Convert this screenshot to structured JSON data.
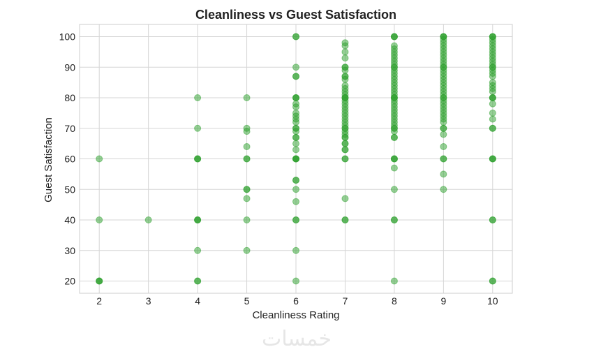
{
  "chart_data": {
    "type": "scatter",
    "title": "Cleanliness vs Guest Satisfaction",
    "xlabel": "Cleanliness Rating",
    "ylabel": "Guest Satisfaction",
    "xlim": [
      1.6,
      10.4
    ],
    "ylim": [
      16,
      104
    ],
    "xticks": [
      2,
      3,
      4,
      5,
      6,
      7,
      8,
      9,
      10
    ],
    "yticks": [
      20,
      30,
      40,
      50,
      60,
      70,
      80,
      90,
      100
    ],
    "grid": true,
    "marker_color": "#2ca02c",
    "marker_alpha": 0.5,
    "points": [
      {
        "x": 2,
        "y": 60
      },
      {
        "x": 2,
        "y": 40
      },
      {
        "x": 2,
        "y": 20
      },
      {
        "x": 2,
        "y": 20
      },
      {
        "x": 2,
        "y": 20
      },
      {
        "x": 3,
        "y": 40
      },
      {
        "x": 4,
        "y": 80
      },
      {
        "x": 4,
        "y": 70
      },
      {
        "x": 4,
        "y": 60
      },
      {
        "x": 4,
        "y": 60
      },
      {
        "x": 4,
        "y": 60
      },
      {
        "x": 4,
        "y": 40
      },
      {
        "x": 4,
        "y": 40
      },
      {
        "x": 4,
        "y": 40
      },
      {
        "x": 4,
        "y": 30
      },
      {
        "x": 4,
        "y": 20
      },
      {
        "x": 4,
        "y": 20
      },
      {
        "x": 5,
        "y": 80
      },
      {
        "x": 5,
        "y": 70
      },
      {
        "x": 5,
        "y": 69
      },
      {
        "x": 5,
        "y": 64
      },
      {
        "x": 5,
        "y": 60
      },
      {
        "x": 5,
        "y": 60
      },
      {
        "x": 5,
        "y": 50
      },
      {
        "x": 5,
        "y": 50
      },
      {
        "x": 5,
        "y": 47
      },
      {
        "x": 5,
        "y": 40
      },
      {
        "x": 5,
        "y": 30
      },
      {
        "x": 6,
        "y": 100
      },
      {
        "x": 6,
        "y": 100
      },
      {
        "x": 6,
        "y": 90
      },
      {
        "x": 6,
        "y": 87
      },
      {
        "x": 6,
        "y": 87
      },
      {
        "x": 6,
        "y": 80
      },
      {
        "x": 6,
        "y": 80
      },
      {
        "x": 6,
        "y": 80
      },
      {
        "x": 6,
        "y": 78
      },
      {
        "x": 6,
        "y": 77
      },
      {
        "x": 6,
        "y": 75
      },
      {
        "x": 6,
        "y": 74
      },
      {
        "x": 6,
        "y": 73
      },
      {
        "x": 6,
        "y": 72
      },
      {
        "x": 6,
        "y": 70
      },
      {
        "x": 6,
        "y": 70
      },
      {
        "x": 6,
        "y": 69
      },
      {
        "x": 6,
        "y": 67
      },
      {
        "x": 6,
        "y": 67
      },
      {
        "x": 6,
        "y": 65
      },
      {
        "x": 6,
        "y": 63
      },
      {
        "x": 6,
        "y": 60
      },
      {
        "x": 6,
        "y": 60
      },
      {
        "x": 6,
        "y": 60
      },
      {
        "x": 6,
        "y": 60
      },
      {
        "x": 6,
        "y": 53
      },
      {
        "x": 6,
        "y": 53
      },
      {
        "x": 6,
        "y": 50
      },
      {
        "x": 6,
        "y": 46
      },
      {
        "x": 6,
        "y": 40
      },
      {
        "x": 6,
        "y": 40
      },
      {
        "x": 6,
        "y": 30
      },
      {
        "x": 6,
        "y": 20
      },
      {
        "x": 7,
        "y": 98
      },
      {
        "x": 7,
        "y": 97
      },
      {
        "x": 7,
        "y": 95
      },
      {
        "x": 7,
        "y": 93
      },
      {
        "x": 7,
        "y": 90
      },
      {
        "x": 7,
        "y": 90
      },
      {
        "x": 7,
        "y": 89
      },
      {
        "x": 7,
        "y": 87
      },
      {
        "x": 7,
        "y": 87
      },
      {
        "x": 7,
        "y": 86
      },
      {
        "x": 7,
        "y": 84
      },
      {
        "x": 7,
        "y": 83
      },
      {
        "x": 7,
        "y": 82
      },
      {
        "x": 7,
        "y": 81
      },
      {
        "x": 7,
        "y": 80
      },
      {
        "x": 7,
        "y": 80
      },
      {
        "x": 7,
        "y": 80
      },
      {
        "x": 7,
        "y": 79
      },
      {
        "x": 7,
        "y": 78
      },
      {
        "x": 7,
        "y": 77
      },
      {
        "x": 7,
        "y": 76
      },
      {
        "x": 7,
        "y": 75
      },
      {
        "x": 7,
        "y": 74
      },
      {
        "x": 7,
        "y": 73
      },
      {
        "x": 7,
        "y": 72
      },
      {
        "x": 7,
        "y": 71
      },
      {
        "x": 7,
        "y": 70
      },
      {
        "x": 7,
        "y": 70
      },
      {
        "x": 7,
        "y": 69
      },
      {
        "x": 7,
        "y": 68
      },
      {
        "x": 7,
        "y": 67
      },
      {
        "x": 7,
        "y": 67
      },
      {
        "x": 7,
        "y": 65
      },
      {
        "x": 7,
        "y": 65
      },
      {
        "x": 7,
        "y": 63
      },
      {
        "x": 7,
        "y": 63
      },
      {
        "x": 7,
        "y": 60
      },
      {
        "x": 7,
        "y": 60
      },
      {
        "x": 7,
        "y": 47
      },
      {
        "x": 7,
        "y": 40
      },
      {
        "x": 7,
        "y": 40
      },
      {
        "x": 8,
        "y": 100
      },
      {
        "x": 8,
        "y": 100
      },
      {
        "x": 8,
        "y": 100
      },
      {
        "x": 8,
        "y": 97
      },
      {
        "x": 8,
        "y": 96
      },
      {
        "x": 8,
        "y": 95
      },
      {
        "x": 8,
        "y": 94
      },
      {
        "x": 8,
        "y": 93
      },
      {
        "x": 8,
        "y": 92
      },
      {
        "x": 8,
        "y": 91
      },
      {
        "x": 8,
        "y": 90
      },
      {
        "x": 8,
        "y": 90
      },
      {
        "x": 8,
        "y": 89
      },
      {
        "x": 8,
        "y": 88
      },
      {
        "x": 8,
        "y": 87
      },
      {
        "x": 8,
        "y": 86
      },
      {
        "x": 8,
        "y": 85
      },
      {
        "x": 8,
        "y": 84
      },
      {
        "x": 8,
        "y": 83
      },
      {
        "x": 8,
        "y": 82
      },
      {
        "x": 8,
        "y": 81
      },
      {
        "x": 8,
        "y": 80
      },
      {
        "x": 8,
        "y": 80
      },
      {
        "x": 8,
        "y": 80
      },
      {
        "x": 8,
        "y": 79
      },
      {
        "x": 8,
        "y": 78
      },
      {
        "x": 8,
        "y": 77
      },
      {
        "x": 8,
        "y": 76
      },
      {
        "x": 8,
        "y": 75
      },
      {
        "x": 8,
        "y": 74
      },
      {
        "x": 8,
        "y": 73
      },
      {
        "x": 8,
        "y": 72
      },
      {
        "x": 8,
        "y": 71
      },
      {
        "x": 8,
        "y": 70
      },
      {
        "x": 8,
        "y": 70
      },
      {
        "x": 8,
        "y": 69
      },
      {
        "x": 8,
        "y": 67
      },
      {
        "x": 8,
        "y": 67
      },
      {
        "x": 8,
        "y": 60
      },
      {
        "x": 8,
        "y": 60
      },
      {
        "x": 8,
        "y": 60
      },
      {
        "x": 8,
        "y": 57
      },
      {
        "x": 8,
        "y": 50
      },
      {
        "x": 8,
        "y": 40
      },
      {
        "x": 8,
        "y": 40
      },
      {
        "x": 8,
        "y": 20
      },
      {
        "x": 9,
        "y": 100
      },
      {
        "x": 9,
        "y": 100
      },
      {
        "x": 9,
        "y": 100
      },
      {
        "x": 9,
        "y": 99
      },
      {
        "x": 9,
        "y": 98
      },
      {
        "x": 9,
        "y": 97
      },
      {
        "x": 9,
        "y": 96
      },
      {
        "x": 9,
        "y": 95
      },
      {
        "x": 9,
        "y": 94
      },
      {
        "x": 9,
        "y": 93
      },
      {
        "x": 9,
        "y": 92
      },
      {
        "x": 9,
        "y": 91
      },
      {
        "x": 9,
        "y": 90
      },
      {
        "x": 9,
        "y": 90
      },
      {
        "x": 9,
        "y": 89
      },
      {
        "x": 9,
        "y": 88
      },
      {
        "x": 9,
        "y": 87
      },
      {
        "x": 9,
        "y": 86
      },
      {
        "x": 9,
        "y": 85
      },
      {
        "x": 9,
        "y": 84
      },
      {
        "x": 9,
        "y": 83
      },
      {
        "x": 9,
        "y": 82
      },
      {
        "x": 9,
        "y": 81
      },
      {
        "x": 9,
        "y": 80
      },
      {
        "x": 9,
        "y": 80
      },
      {
        "x": 9,
        "y": 79
      },
      {
        "x": 9,
        "y": 78
      },
      {
        "x": 9,
        "y": 77
      },
      {
        "x": 9,
        "y": 76
      },
      {
        "x": 9,
        "y": 75
      },
      {
        "x": 9,
        "y": 74
      },
      {
        "x": 9,
        "y": 73
      },
      {
        "x": 9,
        "y": 72
      },
      {
        "x": 9,
        "y": 70
      },
      {
        "x": 9,
        "y": 70
      },
      {
        "x": 9,
        "y": 68
      },
      {
        "x": 9,
        "y": 64
      },
      {
        "x": 9,
        "y": 60
      },
      {
        "x": 9,
        "y": 60
      },
      {
        "x": 9,
        "y": 55
      },
      {
        "x": 9,
        "y": 50
      },
      {
        "x": 10,
        "y": 100
      },
      {
        "x": 10,
        "y": 100
      },
      {
        "x": 10,
        "y": 100
      },
      {
        "x": 10,
        "y": 99
      },
      {
        "x": 10,
        "y": 98
      },
      {
        "x": 10,
        "y": 97
      },
      {
        "x": 10,
        "y": 96
      },
      {
        "x": 10,
        "y": 95
      },
      {
        "x": 10,
        "y": 94
      },
      {
        "x": 10,
        "y": 93
      },
      {
        "x": 10,
        "y": 92
      },
      {
        "x": 10,
        "y": 91
      },
      {
        "x": 10,
        "y": 90
      },
      {
        "x": 10,
        "y": 90
      },
      {
        "x": 10,
        "y": 89
      },
      {
        "x": 10,
        "y": 88
      },
      {
        "x": 10,
        "y": 87
      },
      {
        "x": 10,
        "y": 85
      },
      {
        "x": 10,
        "y": 84
      },
      {
        "x": 10,
        "y": 83
      },
      {
        "x": 10,
        "y": 82
      },
      {
        "x": 10,
        "y": 80
      },
      {
        "x": 10,
        "y": 80
      },
      {
        "x": 10,
        "y": 80
      },
      {
        "x": 10,
        "y": 78
      },
      {
        "x": 10,
        "y": 75
      },
      {
        "x": 10,
        "y": 73
      },
      {
        "x": 10,
        "y": 70
      },
      {
        "x": 10,
        "y": 70
      },
      {
        "x": 10,
        "y": 60
      },
      {
        "x": 10,
        "y": 60
      },
      {
        "x": 10,
        "y": 60
      },
      {
        "x": 10,
        "y": 40
      },
      {
        "x": 10,
        "y": 40
      },
      {
        "x": 10,
        "y": 20
      },
      {
        "x": 10,
        "y": 20
      }
    ]
  },
  "watermark": {
    "text": "خمسات"
  }
}
